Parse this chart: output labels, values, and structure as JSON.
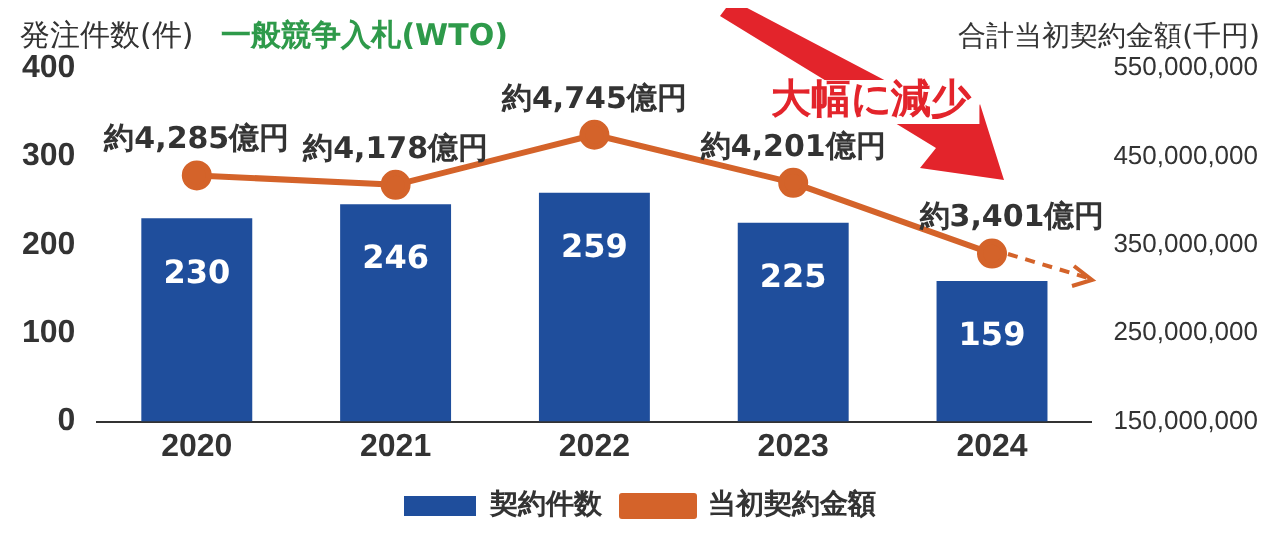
{
  "chart_data": {
    "type": "bar",
    "ylabel": "発注件数(件)",
    "subtitle": "一般競争入札(WTO)",
    "y2label": "合計当初契約金額(千円)",
    "categories": [
      "2020",
      "2021",
      "2022",
      "2023",
      "2024"
    ],
    "series": [
      {
        "name": "契約件数",
        "color": "#1f4e9c",
        "values": [
          230,
          246,
          259,
          225,
          159
        ]
      },
      {
        "name": "当初契約金額",
        "type": "line",
        "axis": "y2",
        "color": "#d4632a",
        "marker": "circle",
        "values": [
          428500000,
          417800000,
          474500000,
          420100000,
          340100000
        ],
        "value_labels": [
          "約4,285億円",
          "約4,178億円",
          "約4,745億円",
          "約4,201億円",
          "約3,401億円"
        ]
      }
    ],
    "ylim": [
      0,
      400
    ],
    "yticks": [
      0,
      100,
      200,
      300,
      400
    ],
    "y2lim": [
      150000000,
      550000000
    ],
    "y2ticks": [
      {
        "value": 150000000,
        "label": "150,000,000"
      },
      {
        "value": 250000000,
        "label": "250,000,000"
      },
      {
        "value": 350000000,
        "label": "350,000,000"
      },
      {
        "value": 450000000,
        "label": "450,000,000"
      },
      {
        "value": 550000000,
        "label": "550,000,000"
      }
    ],
    "data_labels": true,
    "grid": false,
    "legend": "bottom",
    "annotations": [
      "大幅に減少"
    ]
  }
}
